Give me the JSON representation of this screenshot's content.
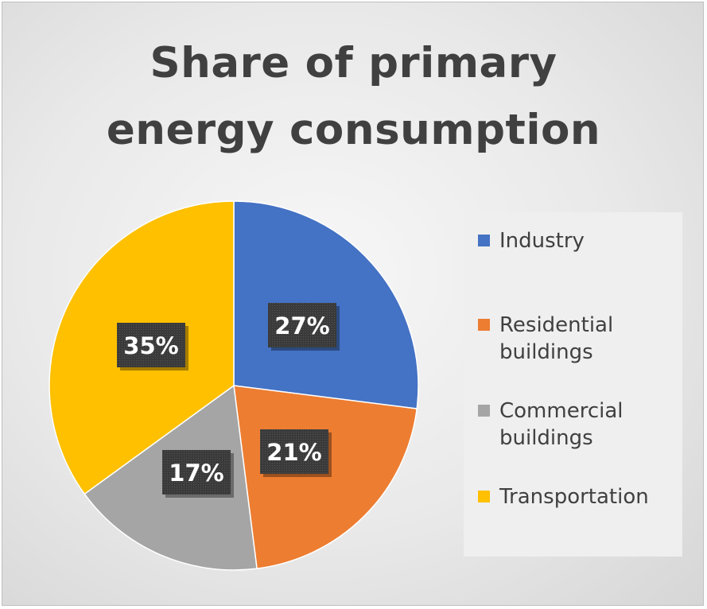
{
  "chart_data": {
    "type": "pie",
    "title_lines": [
      "Share of primary",
      "energy consumption"
    ],
    "categories": [
      "Industry",
      "Residential buildings",
      "Commercial buildings",
      "Transportation"
    ],
    "values": [
      27,
      21,
      17,
      35
    ],
    "data_labels": [
      "27%",
      "21%",
      "17%",
      "35%"
    ],
    "colors": [
      "#4472c4",
      "#ed7d31",
      "#a5a5a5",
      "#ffc000"
    ],
    "legend_position": "right",
    "legend": [
      {
        "lines": [
          "Industry"
        ]
      },
      {
        "lines": [
          "Residential",
          "buildings"
        ]
      },
      {
        "lines": [
          "Commercial",
          "buildings"
        ]
      },
      {
        "lines": [
          "Transportation"
        ]
      }
    ]
  }
}
